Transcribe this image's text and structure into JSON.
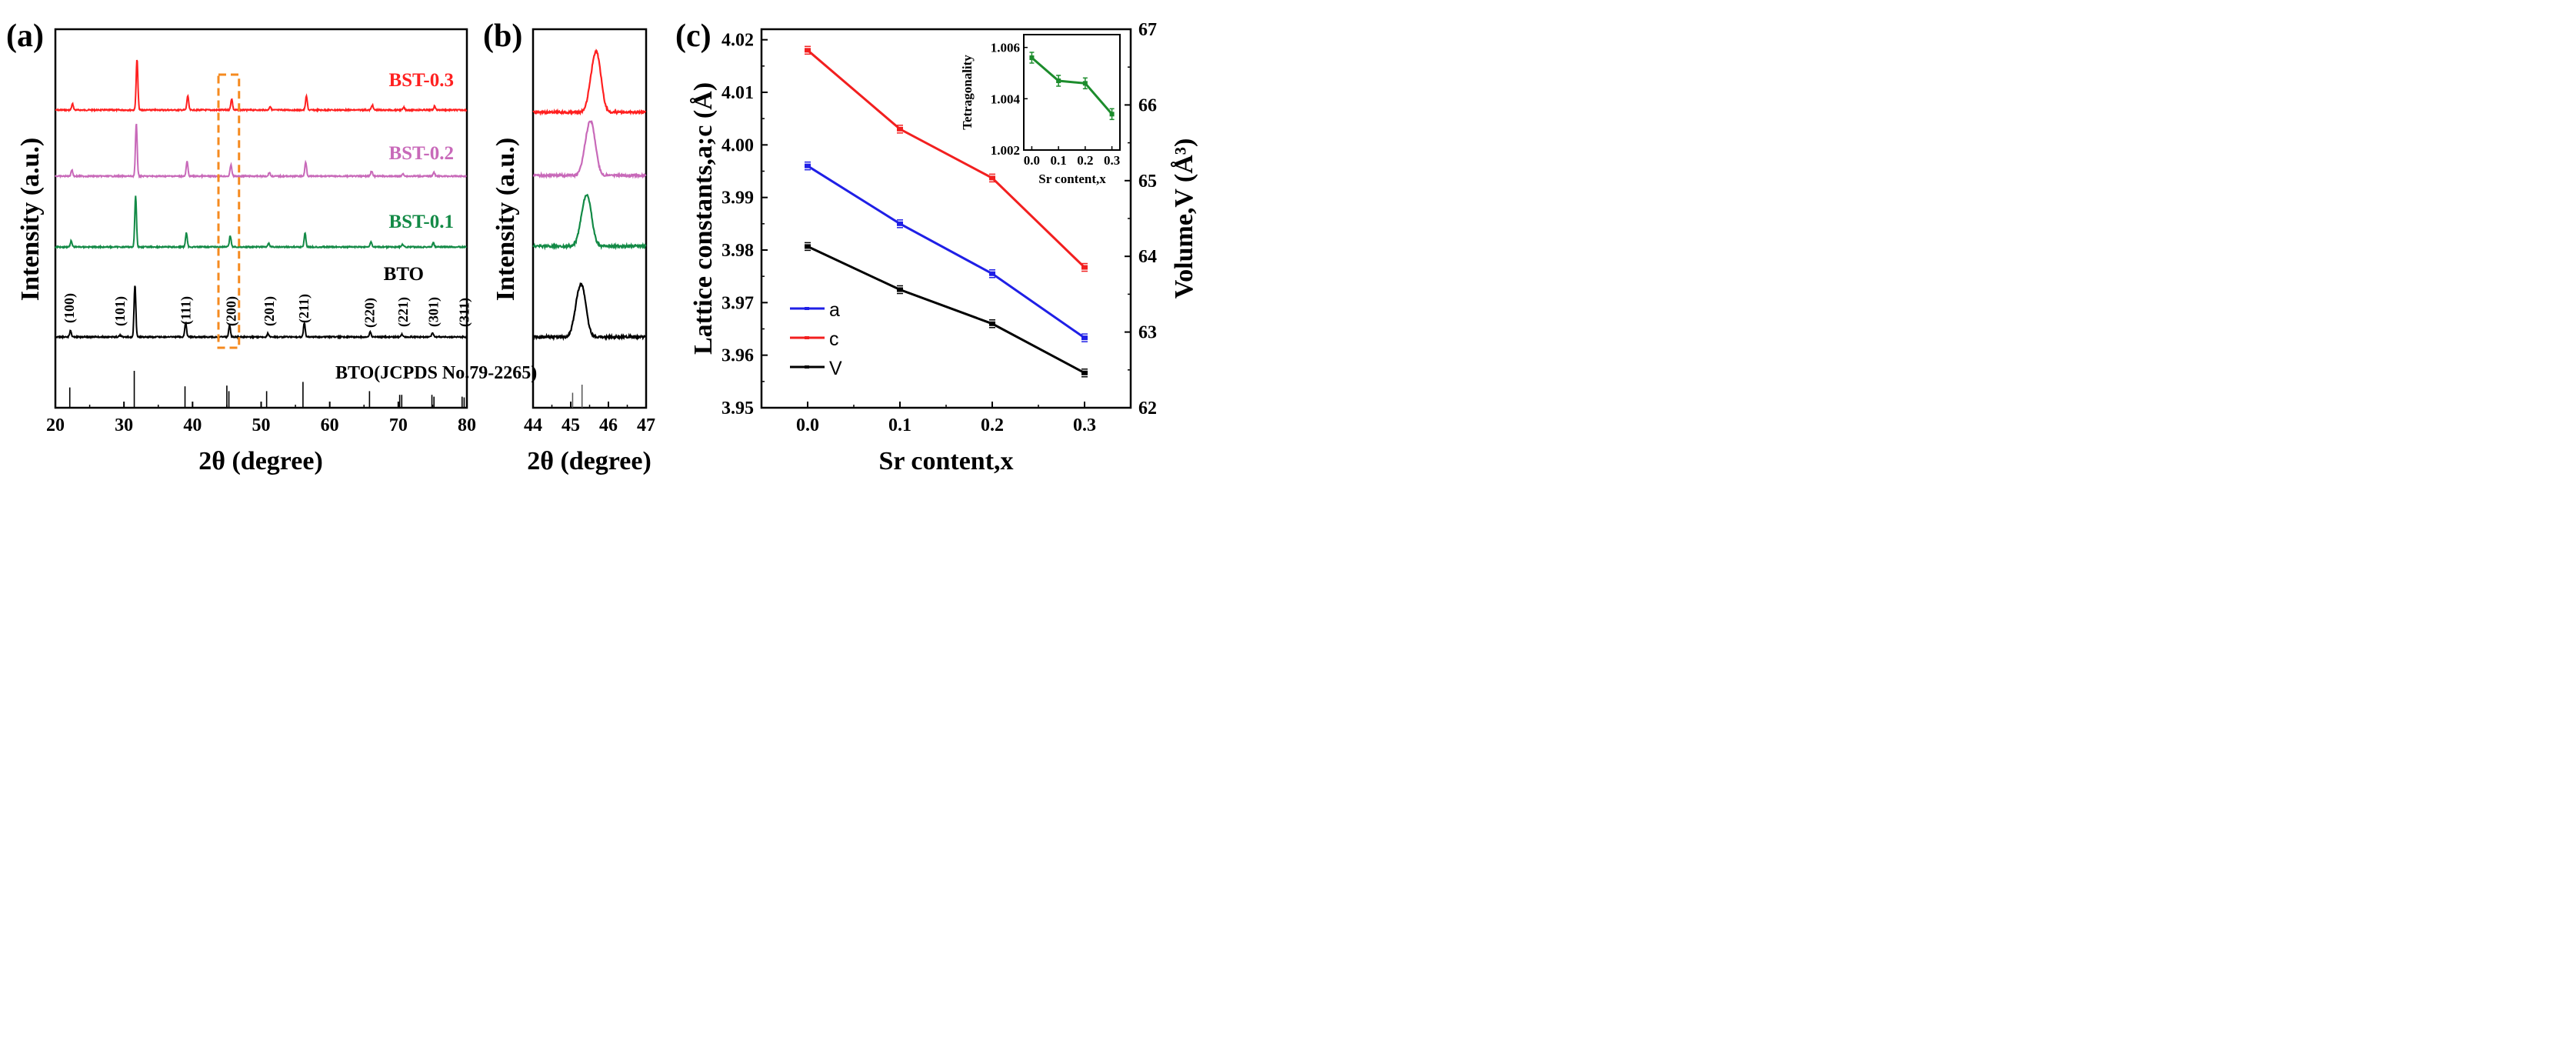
{
  "chart_data": [
    {
      "panel": "(a)",
      "type": "line",
      "xlabel": "2θ (degree)",
      "ylabel": "Intensity (a.u.)",
      "xlim": [
        20,
        80
      ],
      "xticks": [
        20,
        30,
        40,
        50,
        60,
        70,
        80
      ],
      "series": [
        {
          "name": "BST-0.3",
          "color": "#ff2020"
        },
        {
          "name": "BST-0.2",
          "color": "#c869b9"
        },
        {
          "name": "BST-0.1",
          "color": "#138a46"
        },
        {
          "name": "BTO",
          "color": "#000000"
        }
      ],
      "reference_label": "BTO(JCPDS No.79-2265)",
      "reference_lines": [
        {
          "x": 22.1,
          "h": 0.55
        },
        {
          "x": 31.5,
          "h": 1.0
        },
        {
          "x": 38.9,
          "h": 0.58
        },
        {
          "x": 45.0,
          "h": 0.6
        },
        {
          "x": 45.3,
          "h": 0.45
        },
        {
          "x": 50.8,
          "h": 0.45
        },
        {
          "x": 56.1,
          "h": 0.7
        },
        {
          "x": 65.8,
          "h": 0.45
        },
        {
          "x": 70.2,
          "h": 0.35
        },
        {
          "x": 70.5,
          "h": 0.35
        },
        {
          "x": 74.9,
          "h": 0.35
        },
        {
          "x": 75.2,
          "h": 0.3
        },
        {
          "x": 79.3,
          "h": 0.3
        },
        {
          "x": 79.6,
          "h": 0.28
        }
      ],
      "peaks": [
        {
          "x": 22.2,
          "h": 0.12
        },
        {
          "x": 31.6,
          "h": 1.0
        },
        {
          "x": 39.0,
          "h": 0.28
        },
        {
          "x": 45.4,
          "h": 0.22
        },
        {
          "x": 51.0,
          "h": 0.07
        },
        {
          "x": 56.3,
          "h": 0.27
        },
        {
          "x": 65.9,
          "h": 0.1
        },
        {
          "x": 70.5,
          "h": 0.05
        },
        {
          "x": 75.0,
          "h": 0.08
        }
      ],
      "hkl_labels": [
        {
          "text": "(100)",
          "x": 22.0
        },
        {
          "text": "(101)",
          "x": 29.4
        },
        {
          "text": "(111)",
          "x": 39.0
        },
        {
          "text": "(200)",
          "x": 45.6
        },
        {
          "text": "(201)",
          "x": 51.2
        },
        {
          "text": "(211)",
          "x": 56.2
        },
        {
          "text": "(220)",
          "x": 65.8
        },
        {
          "text": "(221)",
          "x": 70.7
        },
        {
          "text": "(301)",
          "x": 75.1
        },
        {
          "text": "(311)",
          "x": 79.6
        }
      ],
      "highlight_box_x": [
        44.0,
        47.0
      ]
    },
    {
      "panel": "(b)",
      "type": "line",
      "xlabel": "2θ (degree)",
      "ylabel": "Intensity (a.u.)",
      "xlim": [
        44,
        47
      ],
      "xticks": [
        44,
        45,
        46,
        47
      ],
      "series": [
        {
          "name": "BST-0.3",
          "color": "#ff2020",
          "peak": 45.7
        },
        {
          "name": "BST-0.2",
          "color": "#c869b9",
          "peak": 45.55
        },
        {
          "name": "BST-0.1",
          "color": "#138a46",
          "peak": 45.45
        },
        {
          "name": "BTO",
          "color": "#000000",
          "peak": 45.3
        }
      ],
      "reference_lines": [
        {
          "x": 45.05,
          "h": 0.65
        },
        {
          "x": 45.3,
          "h": 1.0
        }
      ]
    },
    {
      "panel": "(c)",
      "type": "line",
      "xlabel": "Sr content,x",
      "ylabel": "Lattice constants,a;c (Å)",
      "y2label": "Volume,V (Å³)",
      "x": [
        0.0,
        0.1,
        0.2,
        0.3
      ],
      "xlim": [
        -0.05,
        0.35
      ],
      "xticks": [
        "0.0",
        "0.1",
        "0.2",
        "0.3"
      ],
      "ylim": [
        3.95,
        4.022
      ],
      "yticks": [
        "3.95",
        "3.96",
        "3.97",
        "3.98",
        "3.99",
        "4.00",
        "4.01",
        "4.02"
      ],
      "y2lim": [
        62.0,
        67.0
      ],
      "y2ticks": [
        "62",
        "63",
        "64",
        "65",
        "66",
        "67"
      ],
      "legend_position": "lower-left",
      "series": [
        {
          "name": "a",
          "color": "#1f1fe6",
          "axis": "left",
          "values": [
            3.996,
            3.985,
            3.9755,
            3.9633
          ]
        },
        {
          "name": "c",
          "color": "#f21f1f",
          "axis": "left",
          "values": [
            4.018,
            4.003,
            3.9937,
            3.9767
          ]
        },
        {
          "name": "V",
          "color": "#000000",
          "axis": "right",
          "values": [
            64.13,
            63.56,
            63.11,
            62.46
          ]
        }
      ],
      "inset": {
        "ylabel": "Tetragonality",
        "xlabel": "Sr content,x",
        "x": [
          0.0,
          0.1,
          0.2,
          0.3
        ],
        "values": [
          1.0056,
          1.0047,
          1.0046,
          1.0034
        ],
        "color": "#1c8c2c",
        "xlim": [
          -0.03,
          0.33
        ],
        "xticks": [
          "0.0",
          "0.1",
          "0.2",
          "0.3"
        ],
        "ylim": [
          1.002,
          1.0065
        ],
        "yticks": [
          "1.002",
          "1.004",
          "1.006"
        ]
      }
    }
  ]
}
